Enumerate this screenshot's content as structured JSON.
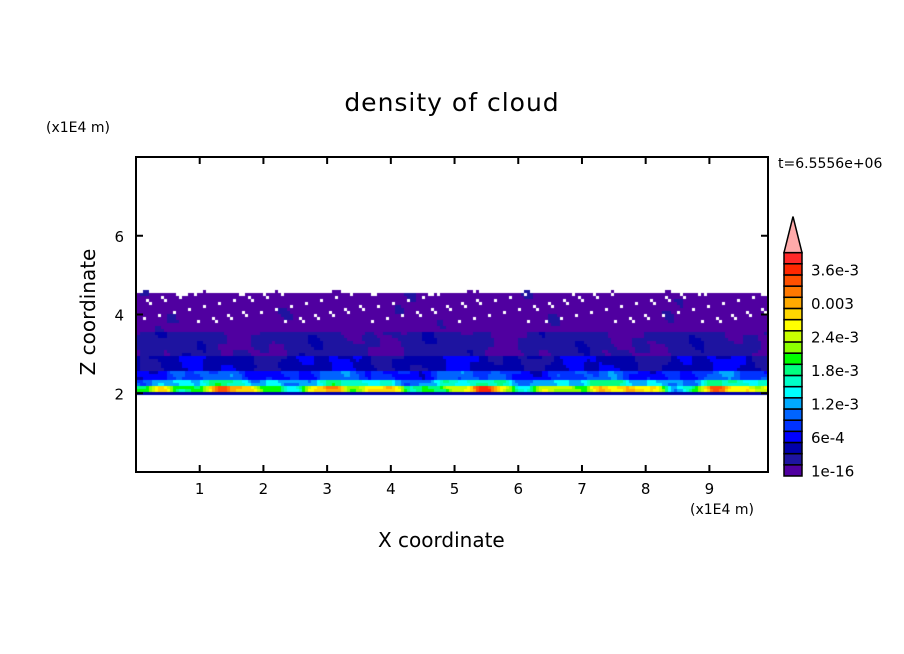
{
  "chart_data": {
    "type": "heatmap",
    "title": "density of cloud",
    "xlabel": "X coordinate",
    "ylabel": "Z coordinate",
    "x_unit": "(x1E4 m)",
    "y_unit": "(x1E4 m)",
    "time_label": "t=6.5556e+06",
    "xlim": [
      0,
      9.92
    ],
    "ylim": [
      0,
      8
    ],
    "x_ticks": [
      1,
      2,
      3,
      4,
      5,
      6,
      7,
      8,
      9
    ],
    "y_ticks": [
      2,
      4,
      6
    ],
    "cloud_base": 2.0,
    "cloud_top": 4.6,
    "colorbar": {
      "levels": [
        1e-16,
        0.0002,
        0.0004,
        0.0006,
        0.0008,
        0.001,
        0.0012,
        0.0014,
        0.0016,
        0.0018,
        0.002,
        0.0022,
        0.0024,
        0.0026,
        0.0028,
        0.003,
        0.0032,
        0.0034,
        0.0036,
        0.0038
      ],
      "labels": [
        "1e-16",
        "6e-4",
        "1.2e-3",
        "1.8e-3",
        "2.4e-3",
        "0.003",
        "3.6e-3"
      ],
      "colors": [
        "#5000a0",
        "#1e14a0",
        "#0000aa",
        "#0000ff",
        "#0032ff",
        "#0064ff",
        "#00aaff",
        "#00ffff",
        "#00ffc8",
        "#00ff80",
        "#00ff00",
        "#8cff00",
        "#c8ff00",
        "#ffff00",
        "#ffd700",
        "#ffaa00",
        "#ff7800",
        "#ff5000",
        "#ff2800",
        "#ff2828"
      ],
      "overflow_color": "#ffaaaa"
    }
  }
}
